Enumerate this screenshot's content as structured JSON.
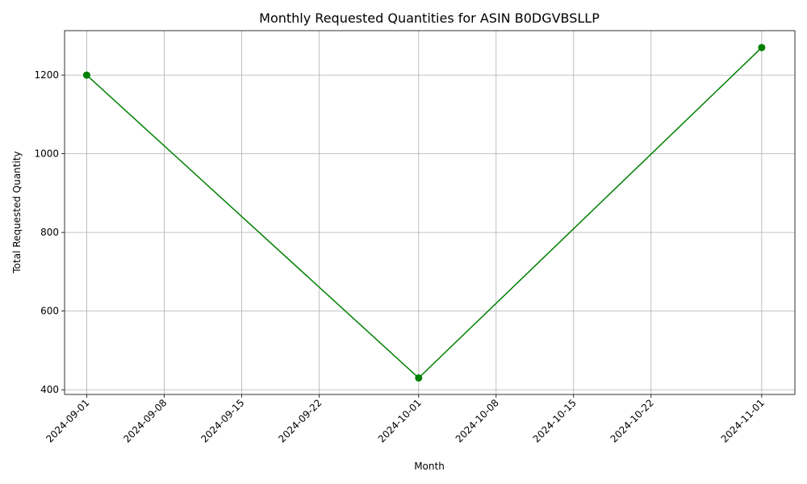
{
  "chart_data": {
    "type": "line",
    "title": "Monthly Requested Quantities for ASIN B0DGVBSLLP",
    "xlabel": "Month",
    "ylabel": "Total Requested Quantity",
    "x_ticks": [
      "2024-09-01",
      "2024-09-08",
      "2024-09-15",
      "2024-09-22",
      "2024-10-01",
      "2024-10-08",
      "2024-10-15",
      "2024-10-22",
      "2024-11-01"
    ],
    "y_ticks": [
      400,
      600,
      800,
      1000,
      1200
    ],
    "xlim": [
      "2024-08-30",
      "2024-11-04"
    ],
    "ylim": [
      388,
      1313
    ],
    "grid": true,
    "series": [
      {
        "color": "#008000",
        "marker": "circle",
        "points": [
          {
            "x": "2024-09-01",
            "y": 1200
          },
          {
            "x": "2024-10-01",
            "y": 430
          },
          {
            "x": "2024-11-01",
            "y": 1270
          }
        ]
      }
    ]
  }
}
